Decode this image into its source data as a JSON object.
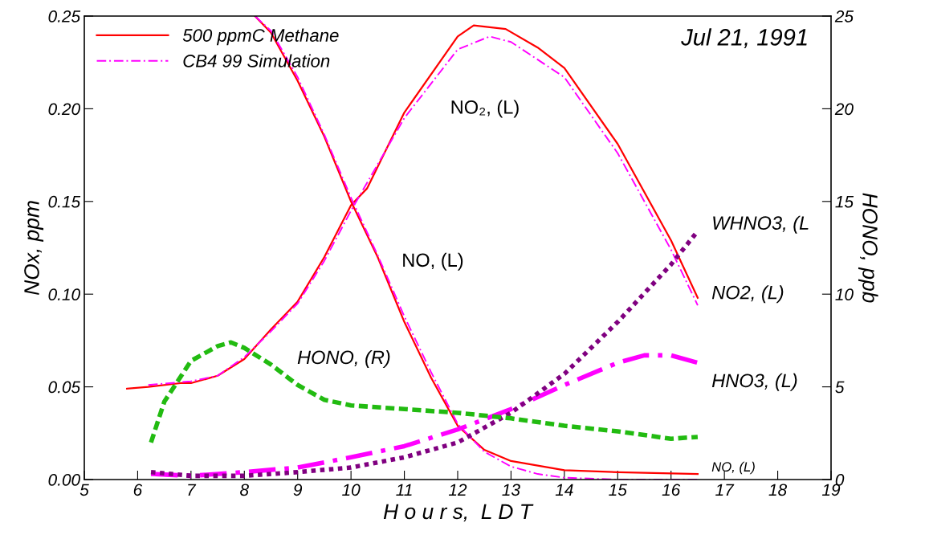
{
  "chart_data": {
    "type": "line",
    "xlabel": "H o u r s,  L D T",
    "ylabel": "NOx, ppm",
    "y2label": "HONO, ppb",
    "xlim": [
      5,
      19
    ],
    "xticks": [
      5,
      6,
      7,
      8,
      9,
      10,
      11,
      12,
      13,
      14,
      15,
      16,
      17,
      18,
      19
    ],
    "ylim": [
      0,
      0.25
    ],
    "yticks": [
      {
        "value": 0,
        "label": "0.00"
      },
      {
        "value": 0.05,
        "label": "0.05"
      },
      {
        "value": 0.1,
        "label": "0.10"
      },
      {
        "value": 0.15,
        "label": "0.15"
      },
      {
        "value": 0.2,
        "label": "0.20"
      },
      {
        "value": 0.25,
        "label": "0.25"
      }
    ],
    "y2lim": [
      0,
      25
    ],
    "y2ticks": [
      0,
      5,
      10,
      15,
      20,
      25
    ],
    "legend": "top left",
    "grid": false,
    "marker": "none",
    "series": [
      {
        "name": "500 ppmC Methane",
        "color": "#ff0000",
        "line_style": "solid",
        "x": [
          5.8,
          6.2,
          6.8,
          7.0,
          7.5,
          8.0,
          8.5,
          9.0,
          9.5,
          10.0,
          10.3,
          11.0,
          12.0,
          12.3,
          12.9,
          13.5,
          14.0,
          15.0,
          16.0,
          16.5
        ],
        "values": [
          0.049,
          0.05,
          0.052,
          0.052,
          0.056,
          0.065,
          0.081,
          0.096,
          0.12,
          0.148,
          0.157,
          0.198,
          0.239,
          0.245,
          0.243,
          0.233,
          0.222,
          0.181,
          0.129,
          0.098
        ]
      },
      {
        "color": "#ff0000",
        "line_style": "solid",
        "x": [
          8.2,
          8.5,
          9.0,
          9.5,
          10.0,
          10.5,
          11.0,
          11.5,
          12.0,
          12.5,
          13.0,
          14.0,
          15.0,
          16.5
        ],
        "values": [
          0.25,
          0.241,
          0.215,
          0.185,
          0.15,
          0.12,
          0.085,
          0.055,
          0.029,
          0.016,
          0.01,
          0.005,
          0.004,
          0.003
        ]
      },
      {
        "name": "CB4 99 Simulation",
        "color": "#ff00ff",
        "line_style": "dashdot",
        "x": [
          6.2,
          7.0,
          7.5,
          8.0,
          8.5,
          9.0,
          9.5,
          10.0,
          11.0,
          12.0,
          12.6,
          13.0,
          14.0,
          15.0,
          16.0,
          16.5
        ],
        "values": [
          0.051,
          0.053,
          0.056,
          0.066,
          0.08,
          0.095,
          0.118,
          0.145,
          0.195,
          0.232,
          0.239,
          0.236,
          0.217,
          0.176,
          0.124,
          0.094
        ]
      },
      {
        "color": "#ff00ff",
        "line_style": "dashdot",
        "x": [
          8.2,
          8.5,
          9.0,
          9.5,
          10.0,
          10.5,
          11.0,
          11.5,
          12.0,
          12.5,
          13.0,
          13.5,
          14.0,
          15.0,
          16.5
        ],
        "values": [
          0.25,
          0.242,
          0.217,
          0.186,
          0.152,
          0.121,
          0.088,
          0.058,
          0.03,
          0.015,
          0.007,
          0.003,
          0.001,
          0.0,
          0.0
        ]
      },
      {
        "color": "#22bb11",
        "line_style": "dashed",
        "axis": "y2",
        "x": [
          6.25,
          6.5,
          7.0,
          7.5,
          7.75,
          8.0,
          8.5,
          9.0,
          9.5,
          10.0,
          11.0,
          12.0,
          13.0,
          14.0,
          15.0,
          16.0,
          16.5
        ],
        "values": [
          2.0,
          4.2,
          6.4,
          7.2,
          7.4,
          7.1,
          6.2,
          5.1,
          4.3,
          4.0,
          3.8,
          3.6,
          3.3,
          2.9,
          2.6,
          2.2,
          2.3
        ]
      },
      {
        "color": "#ff00ff",
        "line_style": "dashdot",
        "x": [
          6.25,
          7.0,
          8.0,
          9.0,
          10.0,
          11.0,
          12.0,
          13.0,
          14.0,
          15.0,
          15.5,
          16.0,
          16.5
        ],
        "values": [
          0.003,
          0.002,
          0.004,
          0.0065,
          0.012,
          0.018,
          0.027,
          0.038,
          0.051,
          0.063,
          0.067,
          0.067,
          0.063
        ]
      },
      {
        "color": "#800080",
        "line_style": "dotted",
        "x": [
          6.25,
          7.0,
          8.0,
          9.0,
          10.0,
          11.0,
          12.0,
          13.0,
          14.0,
          15.0,
          16.0,
          16.5
        ],
        "values": [
          0.004,
          0.002,
          0.002,
          0.004,
          0.0065,
          0.012,
          0.02,
          0.036,
          0.057,
          0.085,
          0.116,
          0.134
        ]
      }
    ],
    "annotations": [
      "Jul 21, 1991",
      "NO₂, (L)",
      "NO, (L)",
      "HONO, (R)",
      "WHNO3, (L",
      "NO2, (L)",
      "HNO3, (L)",
      "NO, (L)"
    ]
  }
}
